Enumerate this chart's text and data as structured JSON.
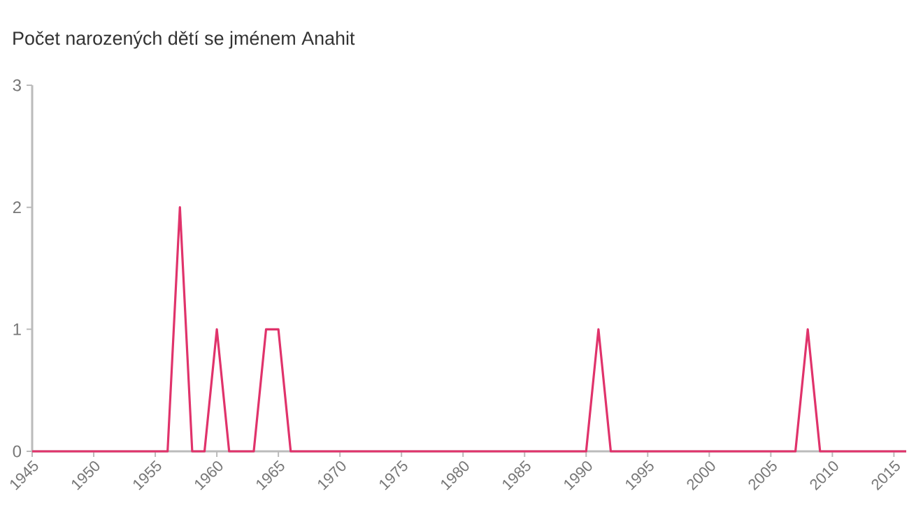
{
  "chart_data": {
    "type": "line",
    "title": "Počet narozených dětí se jménem Anahit",
    "x": [
      1945,
      1946,
      1947,
      1948,
      1949,
      1950,
      1951,
      1952,
      1953,
      1954,
      1955,
      1956,
      1957,
      1958,
      1959,
      1960,
      1961,
      1962,
      1963,
      1964,
      1965,
      1966,
      1967,
      1968,
      1969,
      1970,
      1971,
      1972,
      1973,
      1974,
      1975,
      1976,
      1977,
      1978,
      1979,
      1980,
      1981,
      1982,
      1983,
      1984,
      1985,
      1986,
      1987,
      1988,
      1989,
      1990,
      1991,
      1992,
      1993,
      1994,
      1995,
      1996,
      1997,
      1998,
      1999,
      2000,
      2001,
      2002,
      2003,
      2004,
      2005,
      2006,
      2007,
      2008,
      2009,
      2010,
      2011,
      2012,
      2013,
      2014,
      2015,
      2016
    ],
    "values": [
      0,
      0,
      0,
      0,
      0,
      0,
      0,
      0,
      0,
      0,
      0,
      0,
      2,
      0,
      0,
      1,
      0,
      0,
      0,
      1,
      1,
      0,
      0,
      0,
      0,
      0,
      0,
      0,
      0,
      0,
      0,
      0,
      0,
      0,
      0,
      0,
      0,
      0,
      0,
      0,
      0,
      0,
      0,
      0,
      0,
      0,
      1,
      0,
      0,
      0,
      0,
      0,
      0,
      0,
      0,
      0,
      0,
      0,
      0,
      0,
      0,
      0,
      0,
      1,
      0,
      0,
      0,
      0,
      0,
      0,
      0,
      0
    ],
    "color": "#e0336b",
    "xlim": [
      1945,
      2016
    ],
    "xticks": [
      1945,
      1950,
      1955,
      1960,
      1965,
      1970,
      1975,
      1980,
      1985,
      1990,
      1995,
      2000,
      2005,
      2010,
      2015
    ],
    "ylim": [
      0,
      3
    ],
    "yticks": [
      0,
      1,
      2,
      3
    ],
    "grid": false,
    "marker": "none",
    "line_style": "solid"
  }
}
